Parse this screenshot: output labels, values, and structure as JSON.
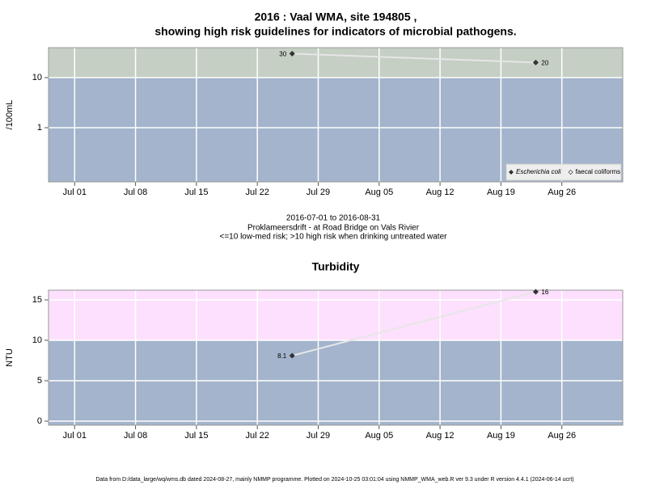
{
  "chart_data": [
    {
      "type": "line",
      "title": [
        "2016 : Vaal WMA, site 194805 ,",
        "showing high risk guidelines for indicators of microbial pathogens."
      ],
      "ylabel": "/100mL",
      "log_y": true,
      "x": [
        "2016-07-26",
        "2016-08-23"
      ],
      "series": [
        {
          "name": "Escherichia coli",
          "color": "#333333",
          "line_color": "#e6e6e6",
          "values": [
            30,
            20
          ]
        },
        {
          "name": "faecal coliforms",
          "color": "#333333",
          "line_color": "#e6e6e6",
          "values": [
            null,
            null
          ]
        }
      ],
      "xlim": [
        "2016-06-28",
        "2016-09-02"
      ],
      "xticks": [
        {
          "value": "2016-07-01",
          "label": "Jul 01"
        },
        {
          "value": "2016-07-08",
          "label": "Jul 08"
        },
        {
          "value": "2016-07-15",
          "label": "Jul 15"
        },
        {
          "value": "2016-07-22",
          "label": "Jul 22"
        },
        {
          "value": "2016-07-29",
          "label": "Jul 29"
        },
        {
          "value": "2016-08-05",
          "label": "Aug 05"
        },
        {
          "value": "2016-08-12",
          "label": "Aug 12"
        },
        {
          "value": "2016-08-19",
          "label": "Aug 19"
        },
        {
          "value": "2016-08-26",
          "label": "Aug 26"
        }
      ],
      "ylim": [
        0.083,
        39.5
      ],
      "yticks": [
        1,
        10
      ],
      "threshold": 10,
      "band_colors": [
        "#a3b4cc",
        "#c5cfc4"
      ],
      "grid": true,
      "legend": "bottom-right"
    },
    {
      "type": "line",
      "title": [
        "Turbidity"
      ],
      "ylabel": "NTU",
      "log_y": false,
      "x": [
        "2016-07-26",
        "2016-08-23"
      ],
      "series": [
        {
          "name": "Turbidity",
          "color": "#333333",
          "line_color": "#e6e6e6",
          "values": [
            8.1,
            16
          ]
        }
      ],
      "xlim": [
        "2016-06-28",
        "2016-09-02"
      ],
      "xticks": [
        {
          "value": "2016-07-01",
          "label": "Jul 01"
        },
        {
          "value": "2016-07-08",
          "label": "Jul 08"
        },
        {
          "value": "2016-07-15",
          "label": "Jul 15"
        },
        {
          "value": "2016-07-22",
          "label": "Jul 22"
        },
        {
          "value": "2016-07-29",
          "label": "Jul 29"
        },
        {
          "value": "2016-08-05",
          "label": "Aug 05"
        },
        {
          "value": "2016-08-12",
          "label": "Aug 12"
        },
        {
          "value": "2016-08-19",
          "label": "Aug 19"
        },
        {
          "value": "2016-08-26",
          "label": "Aug 26"
        }
      ],
      "ylim": [
        -0.5,
        16.2
      ],
      "yticks": [
        0,
        5,
        10,
        15
      ],
      "threshold": 10,
      "band_colors": [
        "#a3b4cc",
        "#fde0fd"
      ],
      "grid": true,
      "legend": "none"
    }
  ],
  "caption": [
    "2016-07-01 to 2016-08-31",
    "Proklameersdrift - at Road Bridge on Vals Rivier",
    "<=10 low-med risk; >10 high risk when drinking untreated water"
  ],
  "footer": "Data from D:/data_large/wq/wms.db dated 2024-08-27, mainly NMMP programme. Plotted on 2024-10-25 03:01:04 using NMMP_WMA_web.R ver 9.3 under R version 4.4.1 (2024-06-14 ucrt)"
}
